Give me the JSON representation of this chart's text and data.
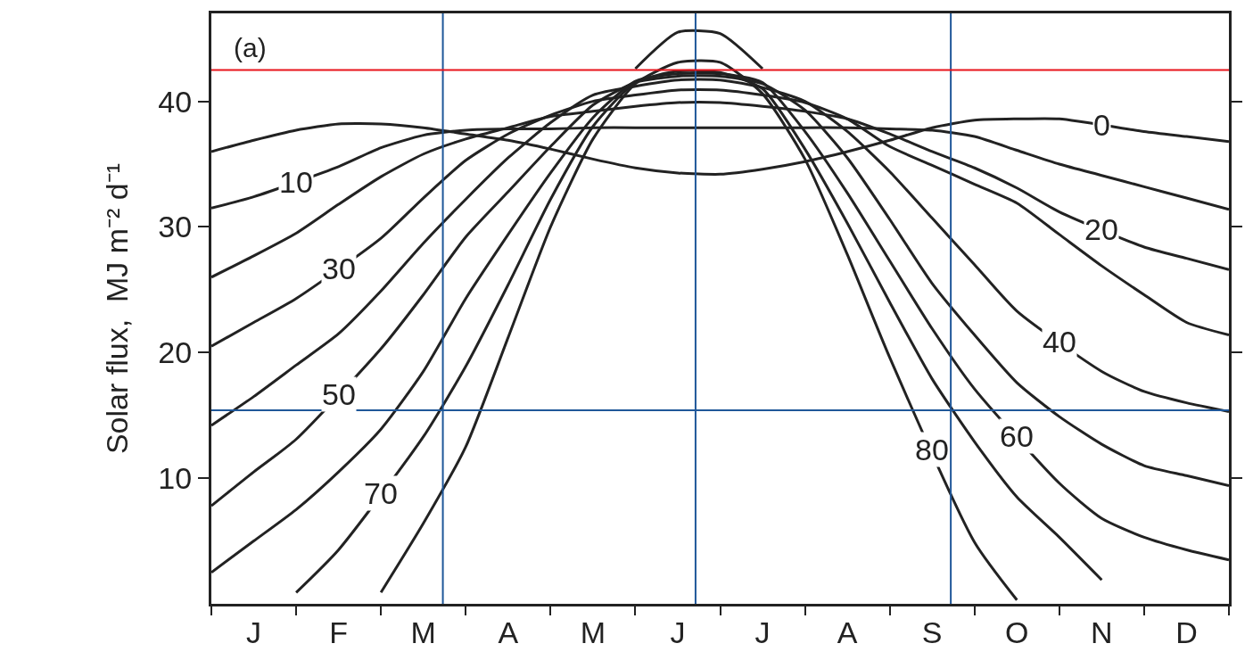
{
  "chart_data": {
    "type": "line",
    "ylabel": "Solar flux,  MJ m⁻² d⁻¹",
    "annotations": [
      "(a)"
    ],
    "categories": [
      null,
      "J",
      null,
      "F",
      null,
      "M",
      null,
      "A",
      null,
      "M",
      null,
      "J",
      null,
      "J",
      null,
      "A",
      null,
      "S",
      null,
      "O",
      null,
      "N",
      null,
      "D",
      null
    ],
    "ylim": [
      0,
      47
    ],
    "yticks": [
      10,
      20,
      30,
      40
    ],
    "legend": false,
    "marker": "none",
    "line_style": "solid",
    "series": [
      {
        "name": "0",
        "color": "#222222",
        "values": [
          36.0,
          36.9,
          37.7,
          38.2,
          38.2,
          37.9,
          37.4,
          36.9,
          36.2,
          35.4,
          34.7,
          34.3,
          34.2,
          34.6,
          35.2,
          36.0,
          36.9,
          37.9,
          38.5,
          38.6,
          38.6,
          null,
          37.6,
          37.2,
          36.8
        ]
      },
      {
        "name": "10",
        "color": "#222222",
        "values": [
          31.5,
          32.4,
          null,
          34.8,
          36.3,
          37.3,
          37.7,
          37.8,
          37.8,
          37.9,
          37.9,
          37.9,
          37.9,
          37.9,
          37.9,
          37.9,
          37.8,
          37.7,
          37.2,
          36.1,
          35.0,
          34.1,
          33.2,
          32.3,
          31.4
        ]
      },
      {
        "name": "20",
        "color": "#222222",
        "values": [
          26.0,
          27.7,
          29.5,
          31.8,
          34.0,
          35.8,
          37.0,
          37.9,
          38.8,
          39.2,
          39.6,
          39.9,
          39.9,
          39.6,
          39.2,
          38.6,
          37.4,
          36.0,
          34.7,
          33.1,
          31.2,
          null,
          28.4,
          27.5,
          26.6
        ]
      },
      {
        "name": "30",
        "color": "#222222",
        "values": [
          20.5,
          22.4,
          24.3,
          null,
          29.1,
          32.3,
          35.3,
          37.4,
          38.9,
          40.0,
          40.5,
          40.9,
          40.9,
          40.5,
          39.9,
          38.6,
          36.4,
          34.9,
          33.4,
          31.9,
          29.4,
          26.9,
          24.6,
          22.4,
          21.4
        ]
      },
      {
        "name": "40",
        "color": "#222222",
        "values": [
          14.2,
          16.5,
          19.0,
          21.5,
          24.9,
          28.7,
          32.2,
          35.5,
          38.3,
          40.5,
          41.2,
          41.7,
          41.7,
          41.1,
          40.0,
          37.6,
          34.4,
          30.7,
          27.0,
          23.3,
          null,
          18.5,
          16.9,
          16.0,
          15.3
        ]
      },
      {
        "name": "50",
        "color": "#222222",
        "values": [
          7.8,
          10.5,
          13.1,
          null,
          20.3,
          24.6,
          29.2,
          32.8,
          36.4,
          39.7,
          41.5,
          42.0,
          42.0,
          41.4,
          39.3,
          35.5,
          30.6,
          25.5,
          21.4,
          17.6,
          14.9,
          12.7,
          11.0,
          10.2,
          9.4
        ]
      },
      {
        "name": "60",
        "color": "#222222",
        "values": [
          2.5,
          5.0,
          7.5,
          10.5,
          13.9,
          18.5,
          24.3,
          29.4,
          34.3,
          38.7,
          41.6,
          42.2,
          42.2,
          41.5,
          37.6,
          32.7,
          27.3,
          21.9,
          17.1,
          null,
          9.6,
          6.8,
          5.3,
          4.3,
          3.5
        ]
      },
      {
        "name": "70",
        "color": "#222222",
        "values": [
          null,
          null,
          0.9,
          4.3,
          null,
          13.3,
          18.9,
          25.4,
          32.2,
          38.0,
          41.5,
          42.4,
          42.3,
          41.0,
          36.2,
          30.3,
          24.0,
          17.9,
          12.9,
          8.5,
          5.3,
          1.9,
          null,
          null,
          null
        ]
      },
      {
        "name": "80",
        "color": "#222222",
        "values": [
          null,
          null,
          null,
          null,
          0.9,
          6.4,
          12.5,
          21.2,
          30.0,
          37.0,
          41.4,
          43.1,
          43.1,
          40.6,
          35.4,
          27.8,
          19.6,
          null,
          4.9,
          0.3,
          null,
          null,
          null,
          null,
          null
        ]
      },
      {
        "color": "#222222",
        "values": [
          null,
          null,
          null,
          null,
          null,
          null,
          null,
          null,
          null,
          null,
          42.6,
          45.5,
          45.4,
          42.6,
          null,
          null,
          null,
          null,
          null,
          null,
          null,
          null,
          null,
          null,
          null
        ]
      }
    ],
    "ref_lines": [
      {
        "axis": "y",
        "value": 42.5,
        "color": "#e8141c"
      },
      {
        "axis": "y",
        "value": 15.4,
        "color": "#1f5799"
      }
    ]
  }
}
